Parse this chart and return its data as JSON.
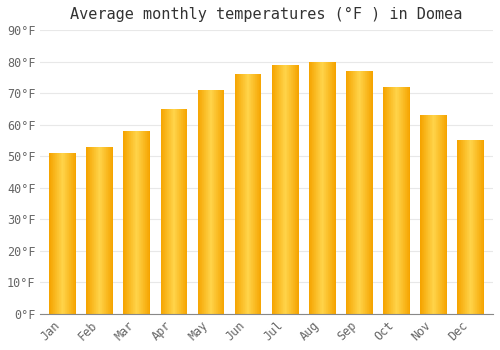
{
  "title": "Average monthly temperatures (°F ) in Domea",
  "months": [
    "Jan",
    "Feb",
    "Mar",
    "Apr",
    "May",
    "Jun",
    "Jul",
    "Aug",
    "Sep",
    "Oct",
    "Nov",
    "Dec"
  ],
  "values": [
    51,
    53,
    58,
    65,
    71,
    76,
    79,
    80,
    77,
    72,
    63,
    55
  ],
  "bar_color_center": "#FFD44A",
  "bar_color_edge": "#F5A400",
  "ylim": [
    0,
    90
  ],
  "yticks": [
    0,
    10,
    20,
    30,
    40,
    50,
    60,
    70,
    80,
    90
  ],
  "ytick_labels": [
    "0°F",
    "10°F",
    "20°F",
    "30°F",
    "40°F",
    "50°F",
    "60°F",
    "70°F",
    "80°F",
    "90°F"
  ],
  "background_color": "#ffffff",
  "grid_color": "#e8e8e8",
  "title_fontsize": 11,
  "tick_fontsize": 8.5,
  "bar_width": 0.72
}
